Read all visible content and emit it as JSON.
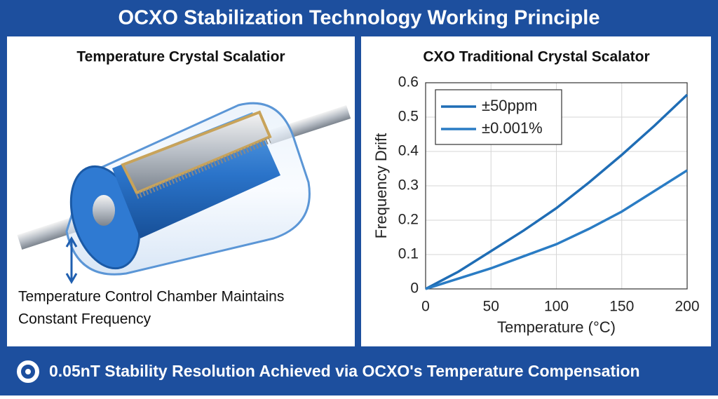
{
  "header": {
    "title": "OCXO Stabilization Technology Working Principle"
  },
  "left_panel": {
    "title": "Temperature Crystal Scalatior",
    "caption_lines": [
      "Temperature Control Chamber Maintains",
      "Constant Frequency"
    ]
  },
  "chart_data": {
    "type": "line",
    "title": "CXO Traditional Crystal Scalator",
    "x_label": "Temperature (°C)",
    "y_label": "Frequency Drift",
    "x": [
      0,
      25,
      50,
      75,
      100,
      125,
      150,
      175,
      200
    ],
    "series": [
      {
        "name": "±50ppm",
        "color": "#1f6db5",
        "values": [
          0,
          0.05,
          0.11,
          0.17,
          0.235,
          0.31,
          0.39,
          0.475,
          0.565
        ]
      },
      {
        "name": "±0.001%",
        "color": "#2a7cc4",
        "values": [
          0,
          0.03,
          0.06,
          0.095,
          0.13,
          0.175,
          0.225,
          0.285,
          0.345
        ]
      }
    ],
    "xlim": [
      0,
      200
    ],
    "xticks": [
      0,
      50,
      100,
      150,
      200
    ],
    "ylim": [
      0,
      0.6
    ],
    "yticks": [
      0,
      0.1,
      0.2,
      0.3,
      0.4,
      0.5,
      0.6
    ],
    "grid": true,
    "legend": "upper left"
  },
  "footer": {
    "text": "0.05nT Stability Resolution Achieved via OCXO's Temperature Compensation"
  }
}
